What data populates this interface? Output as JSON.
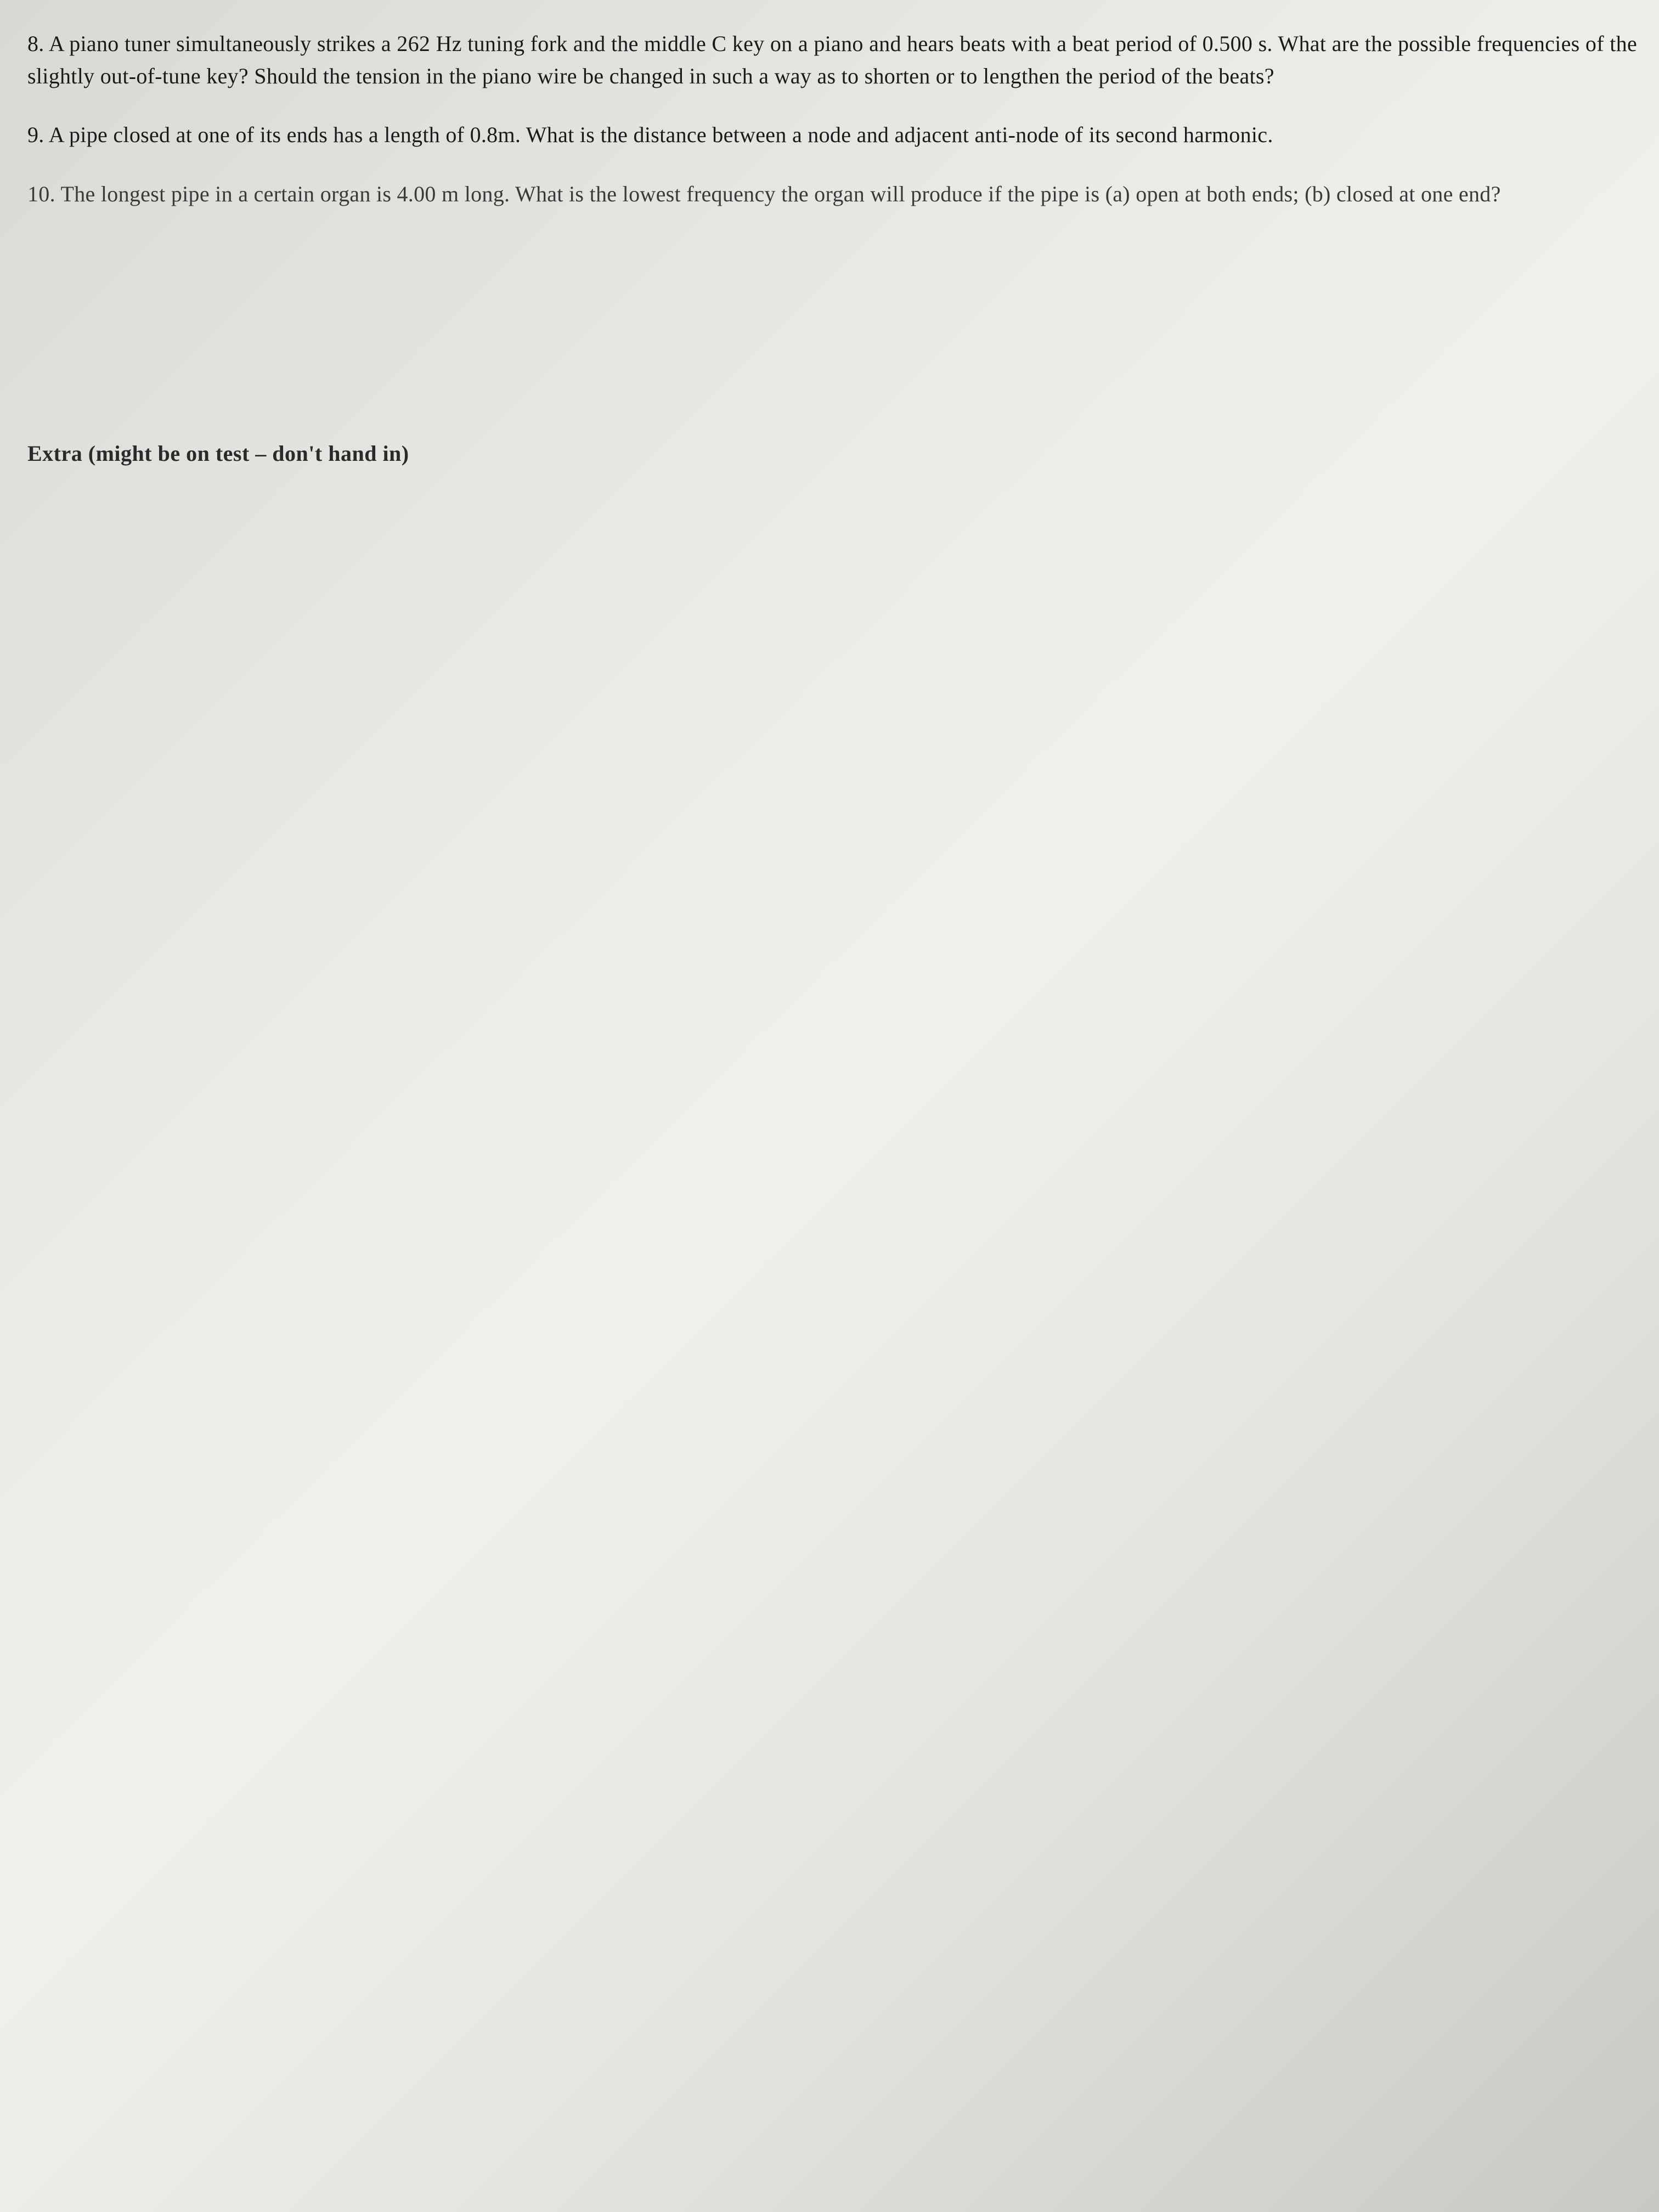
{
  "problems": {
    "q8": {
      "number": "8.",
      "text": "A piano tuner simultaneously strikes a 262 Hz tuning fork and the middle C key on a piano and hears beats with a beat period of 0.500 s. What are the possible frequencies of the slightly out-of-tune key? Should the tension in the piano wire be changed in such a way as to shorten or to lengthen the period of the beats?"
    },
    "q9": {
      "number": "9.",
      "text": "A pipe closed at one of its ends has a length of 0.8m. What is the distance between a node and adjacent anti-node of its second harmonic."
    },
    "q10": {
      "number": "10.",
      "text": "The longest pipe in a certain organ is 4.00 m long. What is the lowest frequency the organ will produce if the pipe is (a) open at both ends; (b) closed at one end?"
    }
  },
  "footer": {
    "text": "Extra (might be on test – don't hand in)"
  },
  "styling": {
    "background_color": "#e8e8e4",
    "text_color": "#1a1a1a",
    "font_family": "Georgia, Times New Roman, serif",
    "body_fontsize": 40,
    "line_height": 1.48,
    "problem_spacing": 48,
    "footer_fontweight": 700
  }
}
